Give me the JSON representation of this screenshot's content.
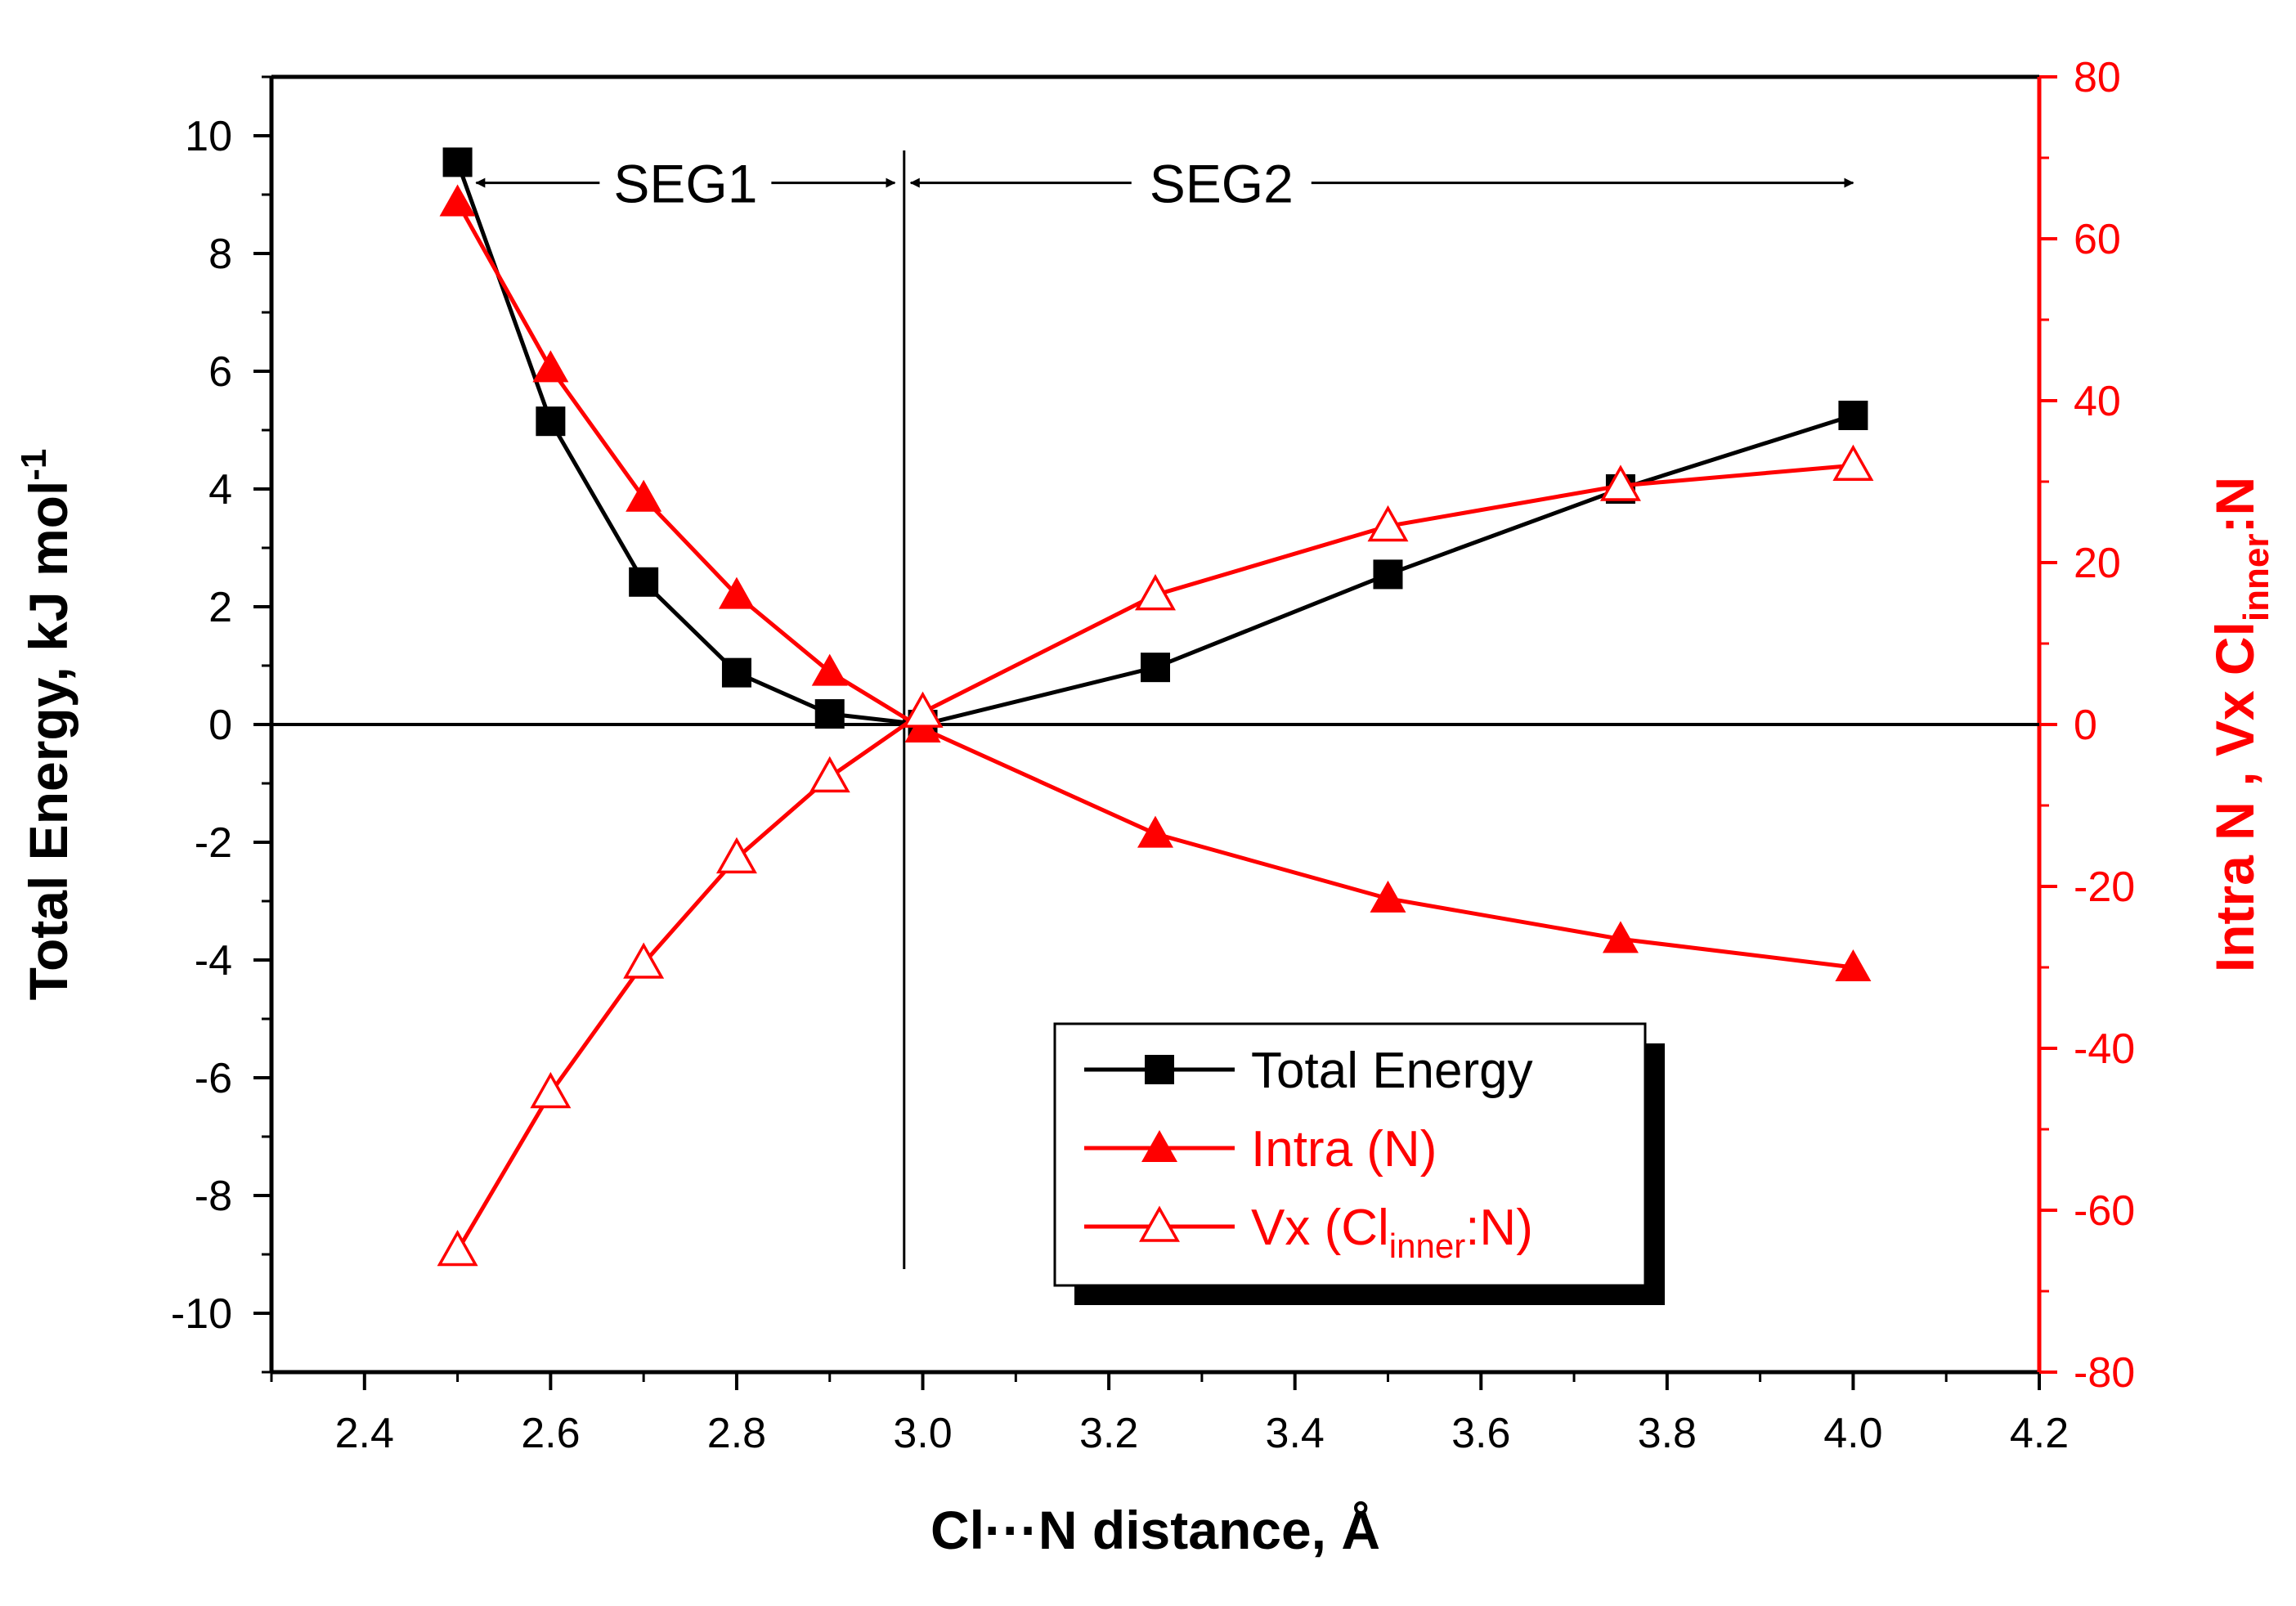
{
  "chart_data": {
    "type": "line",
    "x_axis": {
      "label": "Cl···N distance, Å",
      "range": [
        2.3,
        4.2
      ],
      "ticks": [
        2.4,
        2.6,
        2.8,
        3.0,
        3.2,
        3.4,
        3.6,
        3.8,
        4.0,
        4.2
      ],
      "tick_labels": [
        "2.4",
        "2.6",
        "2.8",
        "3.0",
        "3.2",
        "3.4",
        "3.6",
        "3.8",
        "4.0",
        "4.2"
      ]
    },
    "y_axis_left": {
      "label_main": "Total Energy, kJ mol",
      "label_sup": "-1",
      "range": [
        -11,
        11
      ],
      "ticks": [
        -10,
        -8,
        -6,
        -4,
        -2,
        0,
        2,
        4,
        6,
        8,
        10
      ],
      "tick_labels": [
        "-10",
        "-8",
        "-6",
        "-4",
        "-2",
        "0",
        "2",
        "4",
        "6",
        "8",
        "10"
      ],
      "color": "#000000"
    },
    "y_axis_right": {
      "label_parts": [
        "Intra N",
        "  ,  Vx   Cl",
        "inner",
        ":N"
      ],
      "range": [
        -80,
        80
      ],
      "ticks": [
        -80,
        -60,
        -40,
        -20,
        0,
        20,
        40,
        60,
        80
      ],
      "tick_labels": [
        "-80",
        "-60",
        "-40",
        "-20",
        "0",
        "20",
        "40",
        "60",
        "80"
      ],
      "color": "#ff0000"
    },
    "series": [
      {
        "name": "Total Energy",
        "axis": "left",
        "color": "#000000",
        "marker": "square-filled",
        "x": [
          2.5,
          2.6,
          2.7,
          2.8,
          2.9,
          3.0,
          3.25,
          3.5,
          3.75,
          4.0
        ],
        "y": [
          9.55,
          5.15,
          2.42,
          0.88,
          0.18,
          0.0,
          0.97,
          2.55,
          4.0,
          5.25
        ]
      },
      {
        "name": "Intra (N)",
        "axis": "right",
        "color": "#ff0000",
        "marker": "triangle-filled",
        "x": [
          2.5,
          2.6,
          2.7,
          2.8,
          2.9,
          3.0,
          3.25,
          3.5,
          3.75,
          4.0
        ],
        "y": [
          64.5,
          44.0,
          28.0,
          16.0,
          6.5,
          -0.5,
          -13.5,
          -21.5,
          -26.5,
          -30.0
        ]
      },
      {
        "name": "Vx (Cl_inner:N)",
        "axis": "right",
        "color": "#ff0000",
        "marker": "triangle-open",
        "x": [
          2.5,
          2.6,
          2.7,
          2.8,
          2.9,
          3.0,
          3.25,
          3.5,
          3.75,
          4.0
        ],
        "y": [
          -65.0,
          -45.5,
          -29.5,
          -16.5,
          -6.5,
          1.5,
          16.0,
          24.5,
          29.5,
          32.0
        ]
      }
    ],
    "legend": {
      "placement": "bottom-center",
      "entries": [
        {
          "label": "Total Energy",
          "color": "#000000"
        },
        {
          "label": "Intra (N)",
          "color": "#ff0000"
        },
        {
          "label_parts": [
            "Vx (Cl",
            "inner",
            ":N)"
          ],
          "color": "#ff0000"
        }
      ]
    },
    "annotations": {
      "seg1": {
        "label": "SEG1",
        "x_from": 2.52,
        "x_to": 2.97
      },
      "seg2": {
        "label": "SEG2",
        "x_from": 2.98,
        "x_to": 4.0
      },
      "divider_x": 2.98,
      "divider_y_range": [
        -9.25,
        9.75
      ],
      "arrow_y": 9.2
    }
  }
}
